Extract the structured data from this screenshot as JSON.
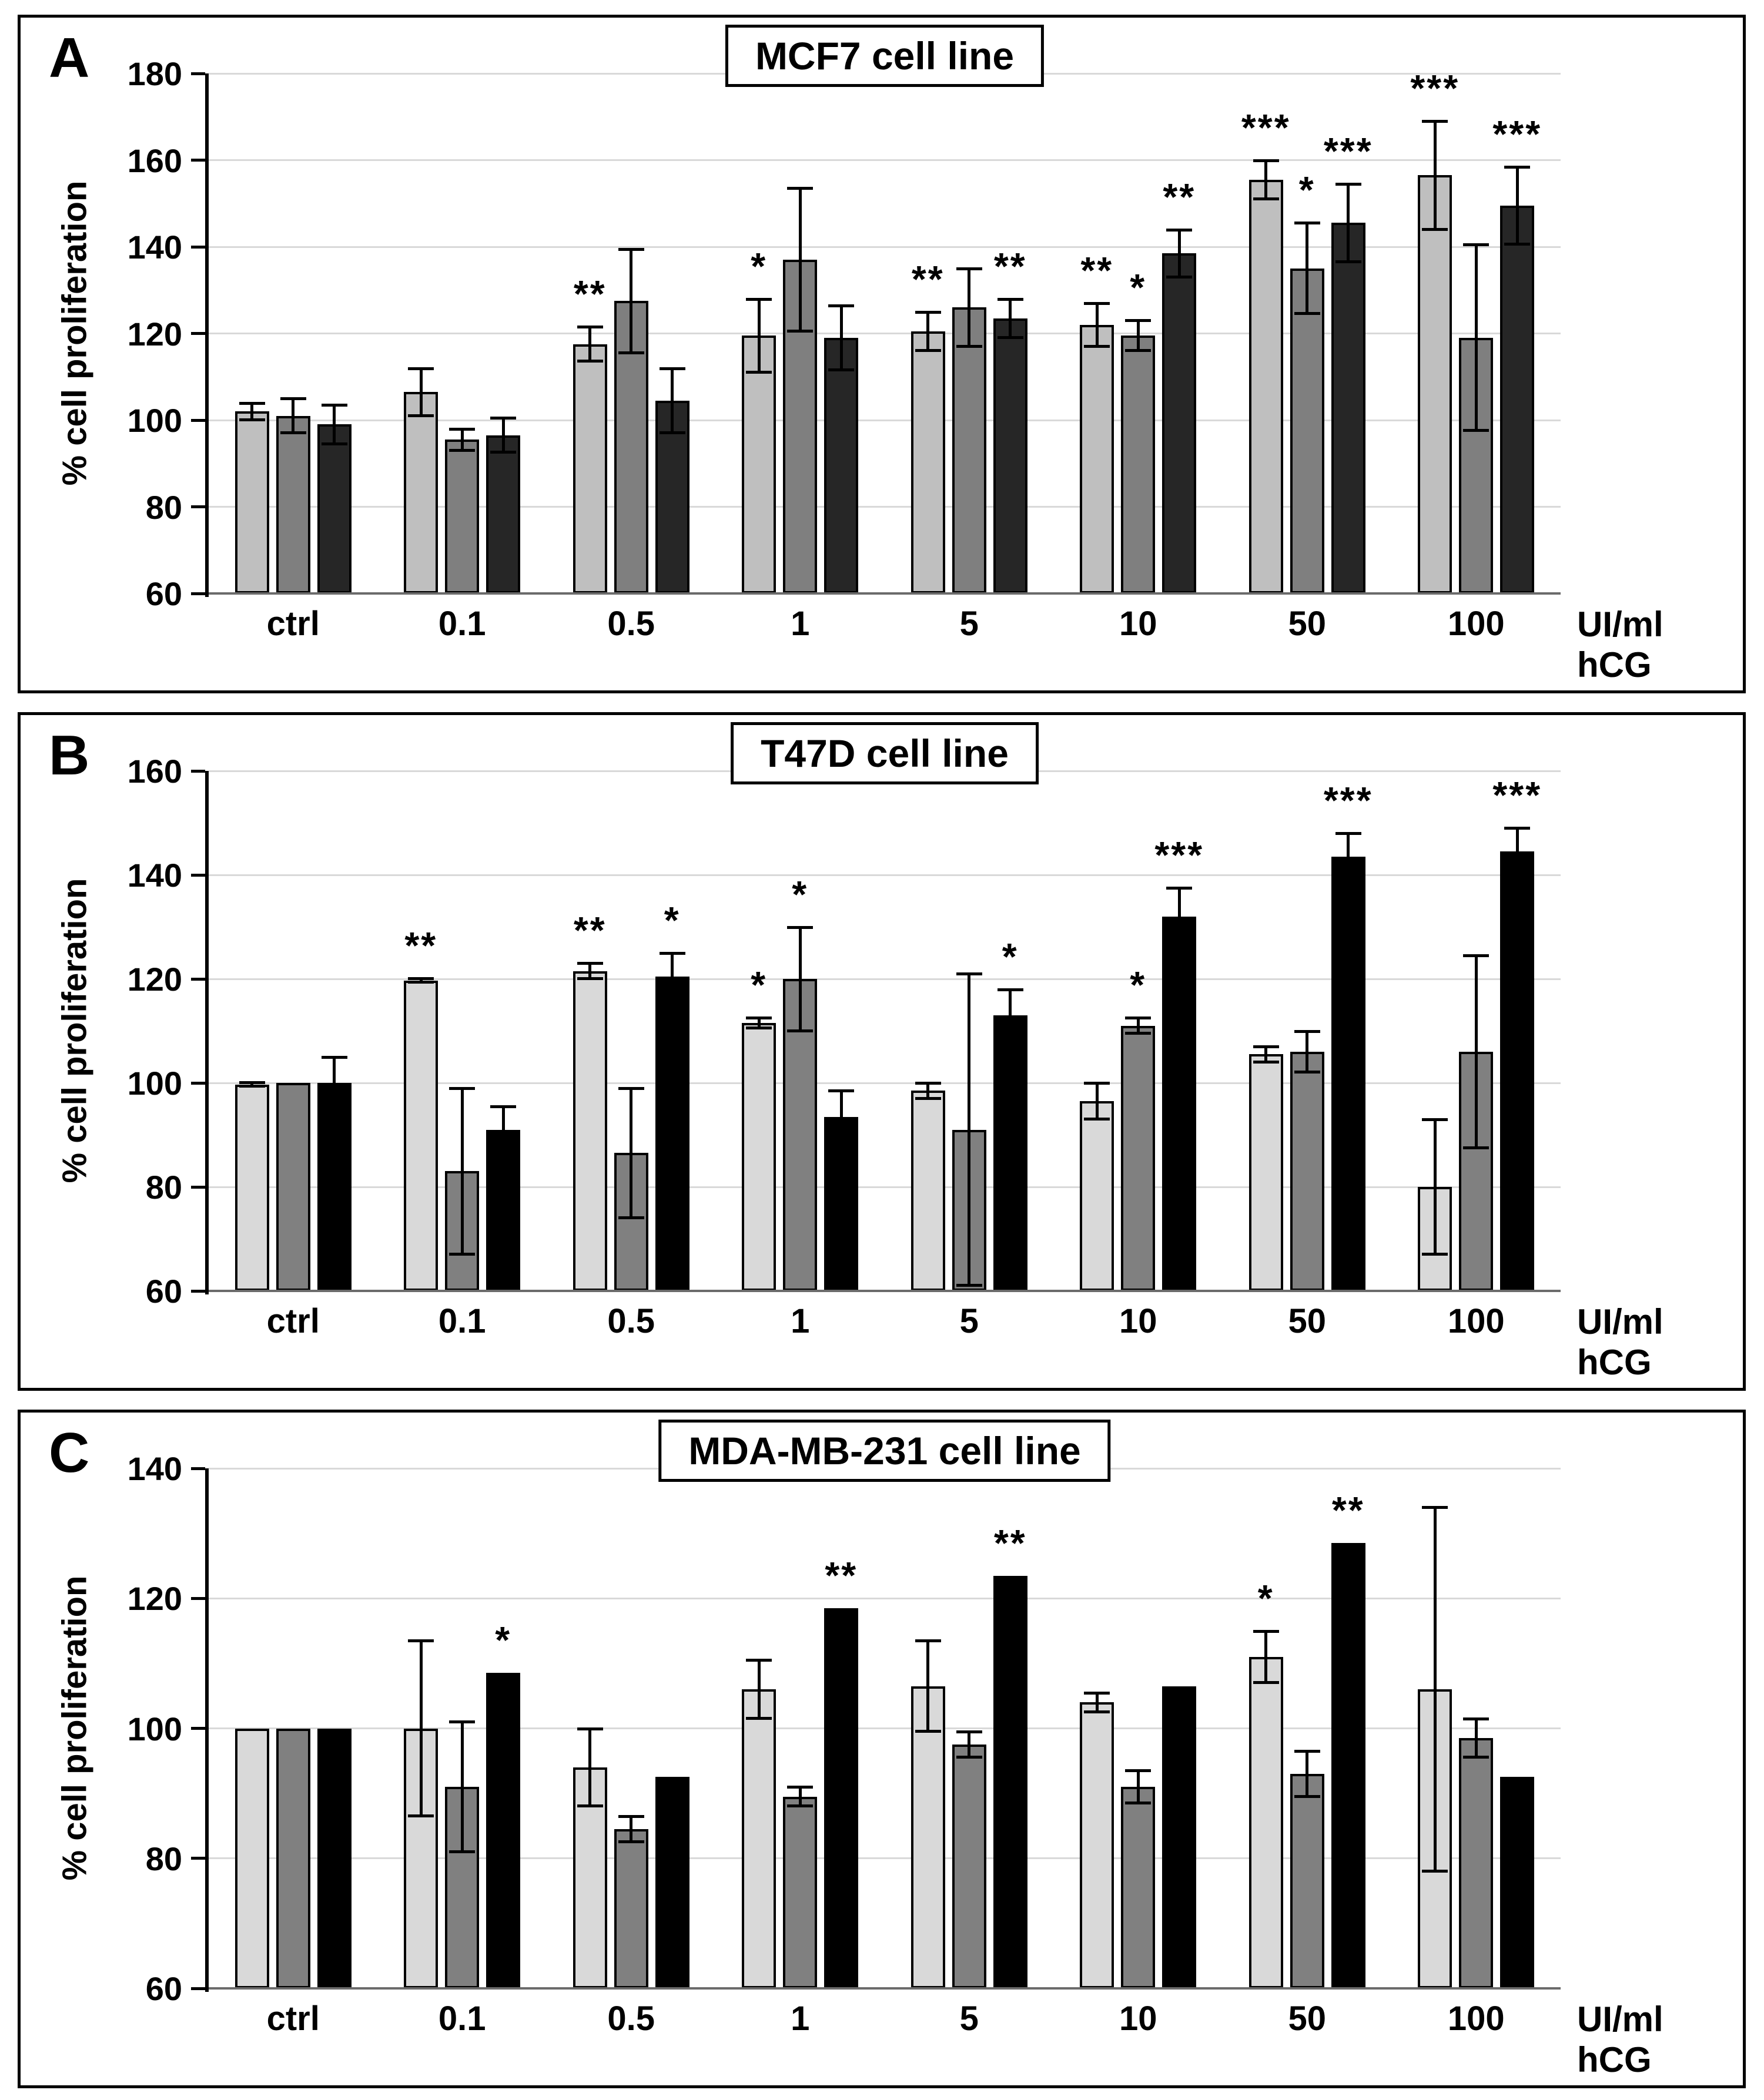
{
  "figure": {
    "ylabel": "% cell proliferation",
    "x_unit_label": "UI/ml hCG"
  },
  "chart_data": [
    {
      "type": "bar",
      "panel_letter": "A",
      "title": "MCF7 cell line",
      "ylabel": "% cell proliferation",
      "x_unit_label": "UI/ml hCG",
      "categories": [
        "ctrl",
        "0.1",
        "0.5",
        "1",
        "5",
        "10",
        "50",
        "100"
      ],
      "ylim": [
        60,
        180
      ],
      "ytick_step": 20,
      "grid": true,
      "legend": "none",
      "series": [
        {
          "name": "light-gray",
          "color": "#bfbfbf",
          "values": [
            102,
            106.5,
            117.5,
            119.5,
            120.5,
            122,
            155.5,
            156.5
          ],
          "errors": [
            2,
            5.5,
            4,
            8.5,
            4.5,
            5,
            4.5,
            12.5
          ],
          "significance": [
            "",
            "",
            "**",
            "*",
            "**",
            "**",
            "***",
            "***"
          ]
        },
        {
          "name": "medium-gray",
          "color": "#7f7f7f",
          "values": [
            101,
            95.5,
            127.5,
            137,
            126,
            119.5,
            135,
            119
          ],
          "errors": [
            4,
            2.5,
            12,
            16.5,
            9,
            3.5,
            10.5,
            21.5
          ],
          "significance": [
            "",
            "",
            "",
            "",
            "",
            "*",
            "*",
            ""
          ]
        },
        {
          "name": "dark",
          "color": "#262626",
          "values": [
            99,
            96.5,
            104.5,
            119,
            123.5,
            138.5,
            145.5,
            149.5
          ],
          "errors": [
            4.5,
            4,
            7.5,
            7.5,
            4.5,
            5.5,
            9,
            9
          ],
          "significance": [
            "",
            "",
            "",
            "",
            "**",
            "**",
            "***",
            "***"
          ]
        }
      ]
    },
    {
      "type": "bar",
      "panel_letter": "B",
      "title": "T47D cell line",
      "ylabel": "% cell proliferation",
      "x_unit_label": "UI/ml hCG",
      "categories": [
        "ctrl",
        "0.1",
        "0.5",
        "1",
        "5",
        "10",
        "50",
        "100"
      ],
      "ylim": [
        60,
        160
      ],
      "ytick_step": 20,
      "grid": true,
      "legend": "none",
      "series": [
        {
          "name": "light-gray",
          "color": "#d9d9d9",
          "values": [
            99.7,
            119.7,
            121.5,
            111.5,
            98.5,
            96.5,
            105.5,
            80
          ],
          "errors": [
            0.4,
            0.4,
            1.5,
            1,
            1.5,
            3.5,
            1.5,
            13
          ],
          "significance": [
            "",
            "**",
            "**",
            "*",
            "",
            "",
            "",
            ""
          ]
        },
        {
          "name": "medium-gray",
          "color": "#808080",
          "values": [
            100,
            83,
            86.5,
            120,
            91,
            111,
            106,
            106
          ],
          "errors": [
            null,
            16,
            12.5,
            10,
            30,
            1.5,
            4,
            18.5
          ],
          "significance": [
            "",
            "",
            "",
            "*",
            "",
            "*",
            "",
            ""
          ]
        },
        {
          "name": "dark",
          "color": "#000000",
          "values": [
            100,
            91,
            120.5,
            93.5,
            113,
            132,
            143.5,
            144.5
          ],
          "errors": [
            5,
            4.5,
            4.5,
            5,
            5,
            5.5,
            4.5,
            4.5
          ],
          "significance": [
            "",
            "",
            "*",
            "",
            "*",
            "***",
            "***",
            "***"
          ]
        }
      ]
    },
    {
      "type": "bar",
      "panel_letter": "C",
      "title": "MDA-MB-231 cell line",
      "ylabel": "% cell proliferation",
      "x_unit_label": "UI/ml hCG",
      "categories": [
        "ctrl",
        "0.1",
        "0.5",
        "1",
        "5",
        "10",
        "50",
        "100"
      ],
      "ylim": [
        60,
        140
      ],
      "ytick_step": 20,
      "grid": true,
      "legend": "none",
      "series": [
        {
          "name": "light-gray",
          "color": "#d9d9d9",
          "values": [
            100,
            100,
            94,
            106,
            106.5,
            104,
            111,
            106
          ],
          "errors": [
            null,
            13.5,
            6,
            4.5,
            7,
            1.5,
            4,
            28
          ],
          "significance": [
            "",
            "",
            "",
            "",
            "",
            "",
            "*",
            ""
          ]
        },
        {
          "name": "medium-gray",
          "color": "#808080",
          "values": [
            100,
            91,
            84.5,
            89.5,
            97.5,
            91,
            93,
            98.5
          ],
          "errors": [
            null,
            10,
            2,
            1.5,
            2,
            2.5,
            3.5,
            3
          ],
          "significance": [
            "",
            "",
            "",
            "",
            "",
            "",
            "",
            ""
          ]
        },
        {
          "name": "dark",
          "color": "#000000",
          "values": [
            100,
            108.5,
            92.5,
            118.5,
            123.5,
            106.5,
            128.5,
            92.5
          ],
          "errors": [
            null,
            null,
            null,
            null,
            null,
            null,
            null,
            null
          ],
          "significance": [
            "",
            "*",
            "",
            "**",
            "**",
            "",
            "**",
            ""
          ]
        }
      ]
    }
  ]
}
